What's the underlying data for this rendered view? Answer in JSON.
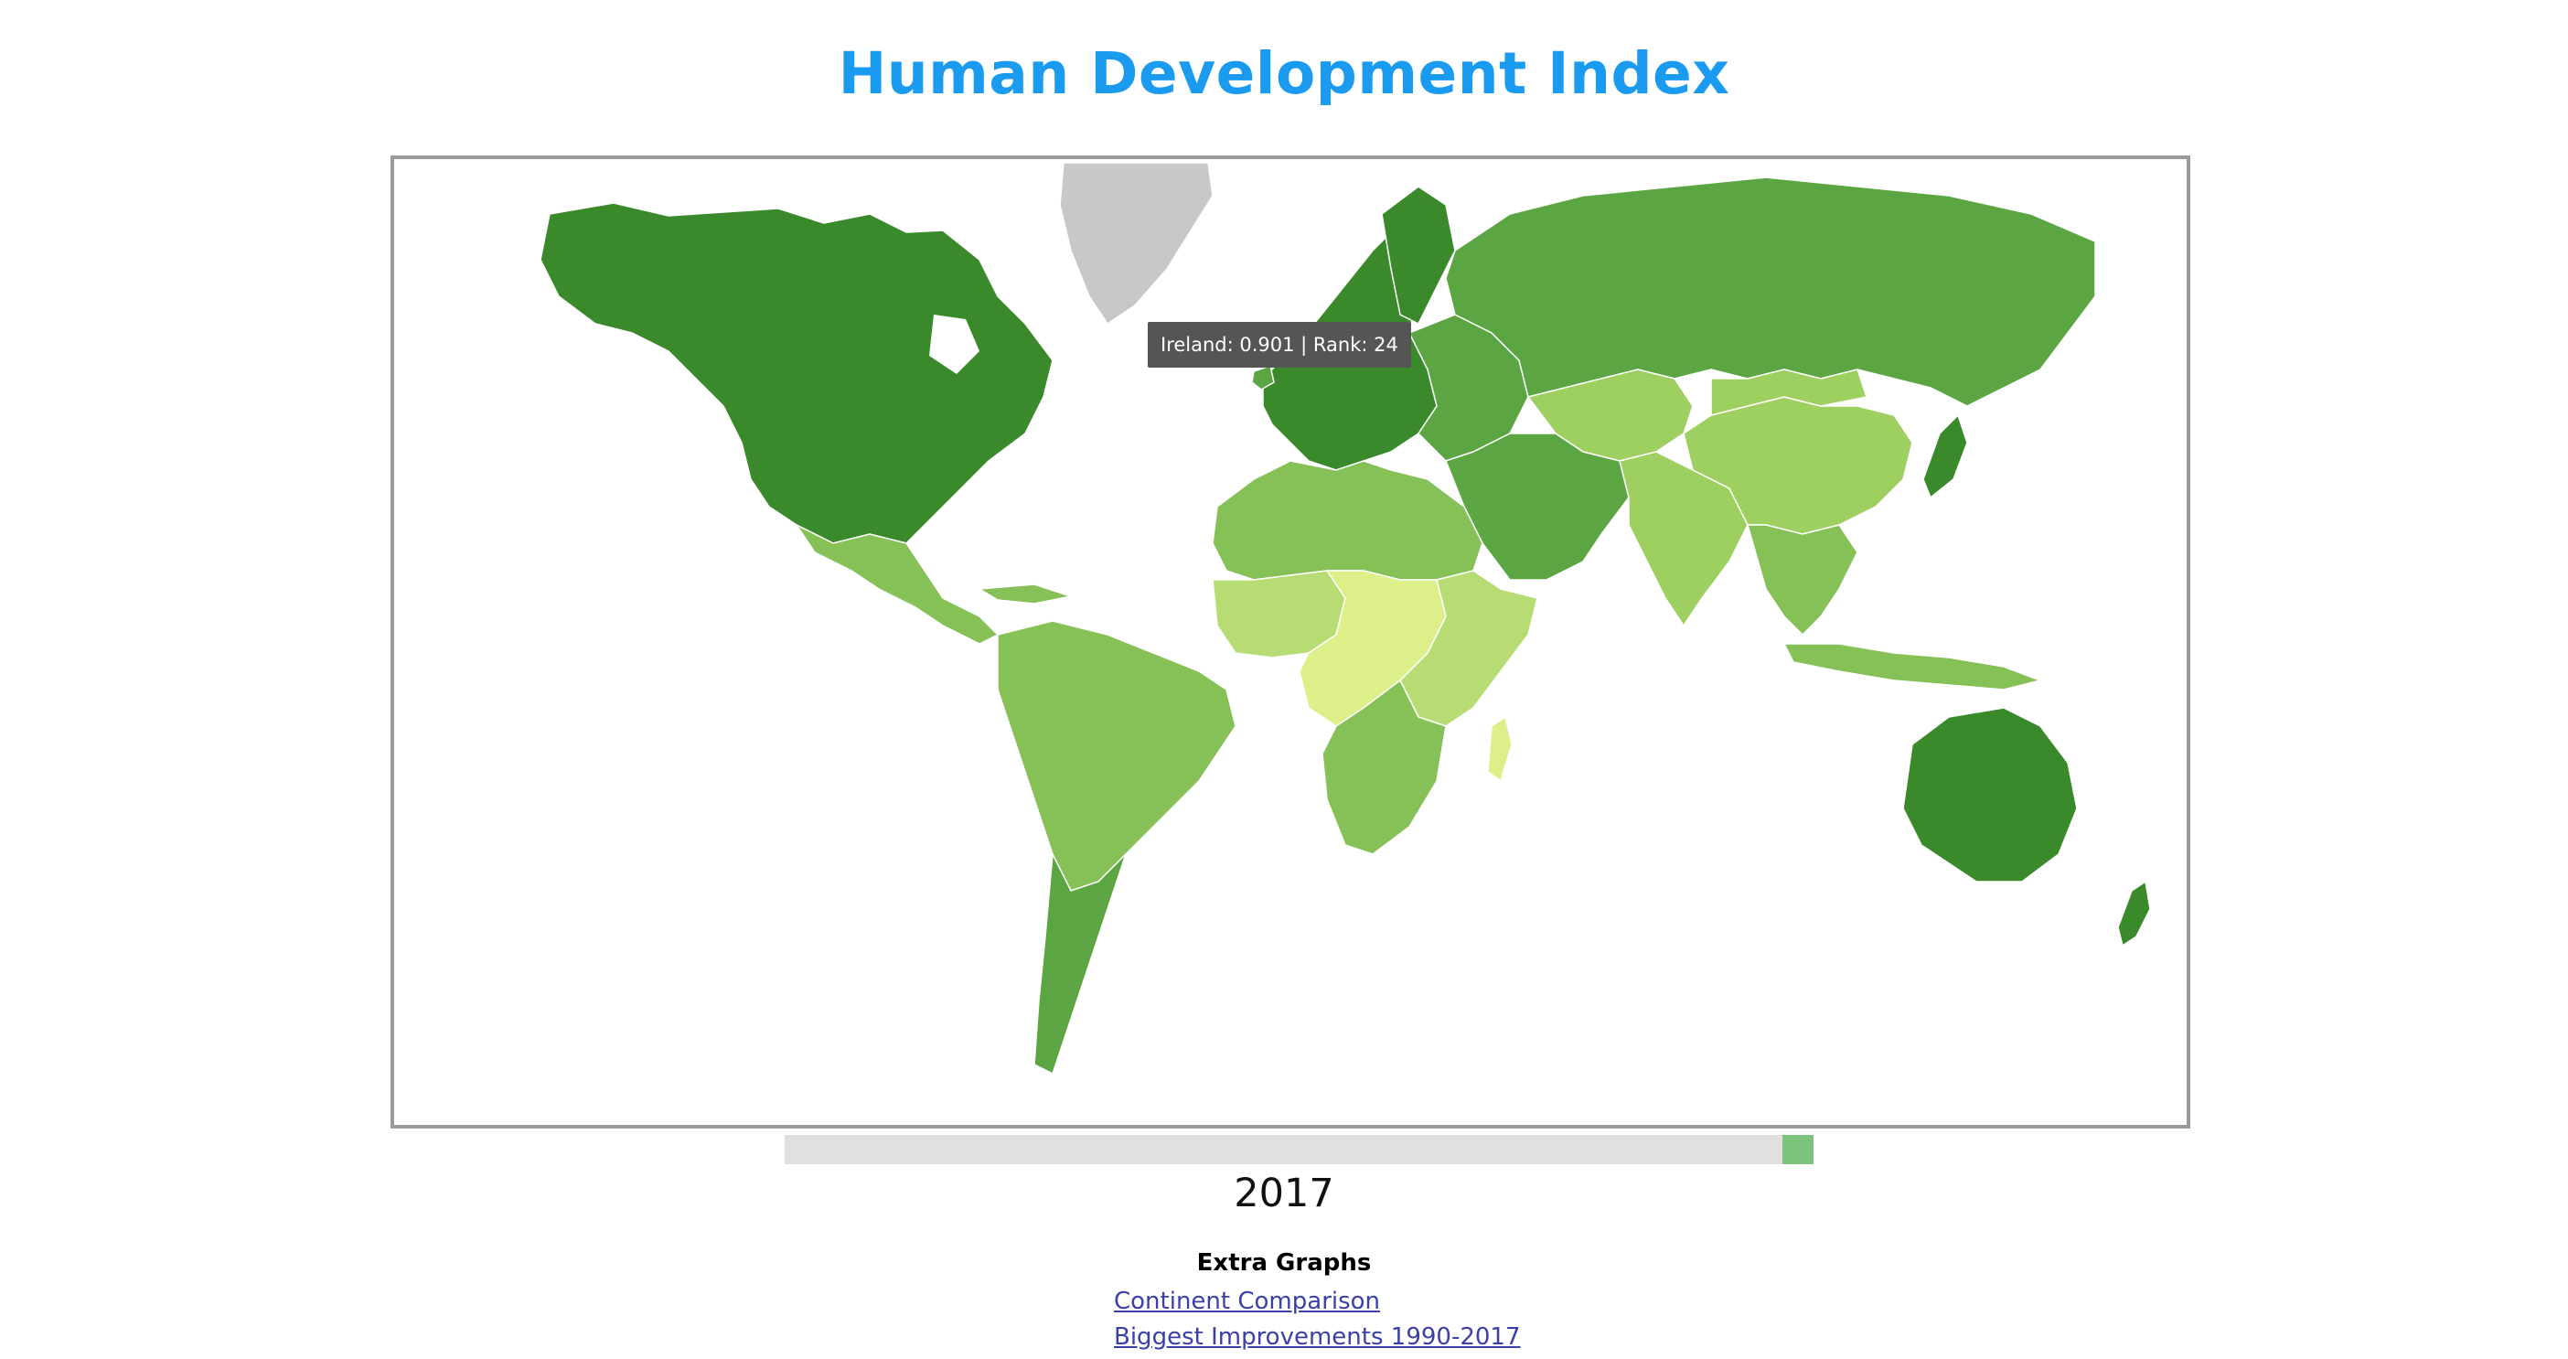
{
  "page": {
    "title": "Human Development Index",
    "year": "2017"
  },
  "tooltip": {
    "text": "Ireland: 0.901 | Rank: 24"
  },
  "slider": {
    "min_year": 1990,
    "max_year": 2017,
    "value_year": 2017
  },
  "extra": {
    "heading": "Extra Graphs",
    "links": [
      {
        "label": "Continent Comparison"
      },
      {
        "label": "Biggest Improvements 1990-2017"
      }
    ]
  },
  "colors": {
    "title": "#1a9bf0",
    "very_high": "#3a8a2c",
    "high": "#5ba643",
    "upper_medium": "#86c157",
    "medium": "#9dd060",
    "low": "#b7dc74",
    "very_low": "#dcef88",
    "no_data": "#c8c8c8",
    "slider_track": "#e0e0e0",
    "slider_handle": "#7cc47c",
    "tooltip_bg": "#555555"
  },
  "map_regions": [
    {
      "name": "North America",
      "hdi_class": "very_high"
    },
    {
      "name": "Greenland",
      "hdi_class": "no_data"
    },
    {
      "name": "Mexico & Central America",
      "hdi_class": "upper_medium"
    },
    {
      "name": "South America",
      "hdi_class": "upper_medium"
    },
    {
      "name": "Southern Cone",
      "hdi_class": "high"
    },
    {
      "name": "Western Europe",
      "hdi_class": "very_high"
    },
    {
      "name": "Eastern Europe",
      "hdi_class": "high"
    },
    {
      "name": "Russia",
      "hdi_class": "high"
    },
    {
      "name": "Central Asia",
      "hdi_class": "medium"
    },
    {
      "name": "Middle East",
      "hdi_class": "high"
    },
    {
      "name": "North Africa",
      "hdi_class": "upper_medium"
    },
    {
      "name": "West Africa",
      "hdi_class": "low"
    },
    {
      "name": "Central Africa",
      "hdi_class": "very_low"
    },
    {
      "name": "East Africa",
      "hdi_class": "low"
    },
    {
      "name": "Southern Africa",
      "hdi_class": "upper_medium"
    },
    {
      "name": "Madagascar",
      "hdi_class": "very_low"
    },
    {
      "name": "South Asia",
      "hdi_class": "medium"
    },
    {
      "name": "China",
      "hdi_class": "medium"
    },
    {
      "name": "Mongolia",
      "hdi_class": "medium"
    },
    {
      "name": "Japan",
      "hdi_class": "very_high"
    },
    {
      "name": "Southeast Asia",
      "hdi_class": "upper_medium"
    },
    {
      "name": "Indonesia",
      "hdi_class": "upper_medium"
    },
    {
      "name": "Australia",
      "hdi_class": "very_high"
    },
    {
      "name": "New Zealand",
      "hdi_class": "very_high"
    },
    {
      "name": "Ireland",
      "hdi_class": "high"
    }
  ]
}
